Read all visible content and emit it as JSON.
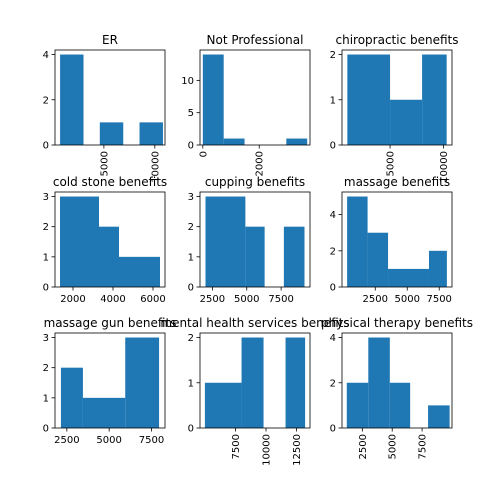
{
  "chart_data": [
    {
      "type": "bar",
      "title": "ER",
      "xlim": [
        200,
        11000
      ],
      "ylim": [
        0,
        4.2
      ],
      "bins": [
        [
          700,
          3000,
          4
        ],
        [
          4600,
          6900,
          1
        ],
        [
          8500,
          10800,
          1
        ]
      ],
      "xticks": [
        {
          "value": 5000,
          "label": "5000"
        },
        {
          "value": 10000,
          "label": "10000"
        }
      ],
      "yticks": [
        {
          "value": 0,
          "label": "0"
        },
        {
          "value": 2,
          "label": "2"
        },
        {
          "value": 4,
          "label": "4"
        }
      ],
      "xrotate": true
    },
    {
      "type": "bar",
      "title": "Not Professional",
      "xlim": [
        -100,
        3800
      ],
      "ylim": [
        0,
        14.7
      ],
      "bins": [
        [
          0,
          740,
          14
        ],
        [
          740,
          1480,
          1
        ],
        [
          2960,
          3700,
          1
        ]
      ],
      "xticks": [
        {
          "value": 0,
          "label": "0"
        },
        {
          "value": 2000,
          "label": "2000"
        }
      ],
      "yticks": [
        {
          "value": 0,
          "label": "0"
        },
        {
          "value": 5,
          "label": "5"
        },
        {
          "value": 10,
          "label": "10"
        }
      ],
      "xrotate": true
    },
    {
      "type": "bar",
      "title": "chiropractic benefits",
      "xlim": [
        500,
        10800
      ],
      "ylim": [
        0,
        2.1
      ],
      "bins": [
        [
          1000,
          5000,
          2
        ],
        [
          5000,
          8000,
          1
        ],
        [
          8000,
          10300,
          2
        ]
      ],
      "xticks": [
        {
          "value": 5000,
          "label": "5000"
        },
        {
          "value": 10000,
          "label": "10000"
        }
      ],
      "yticks": [
        {
          "value": 0,
          "label": "0"
        },
        {
          "value": 1,
          "label": "1"
        },
        {
          "value": 2,
          "label": "2"
        }
      ],
      "xrotate": true
    },
    {
      "type": "bar",
      "title": "cold stone benefits",
      "xlim": [
        1100,
        6600
      ],
      "ylim": [
        0,
        3.15
      ],
      "bins": [
        [
          1350,
          3300,
          3
        ],
        [
          3300,
          4300,
          2
        ],
        [
          4300,
          6350,
          1
        ]
      ],
      "xticks": [
        {
          "value": 2000,
          "label": "2000"
        },
        {
          "value": 4000,
          "label": "4000"
        },
        {
          "value": 6000,
          "label": "6000"
        }
      ],
      "yticks": [
        {
          "value": 0,
          "label": "0"
        },
        {
          "value": 1,
          "label": "1"
        },
        {
          "value": 2,
          "label": "2"
        },
        {
          "value": 3,
          "label": "3"
        }
      ],
      "xrotate": false
    },
    {
      "type": "bar",
      "title": "cupping benefits",
      "xlim": [
        1600,
        9600
      ],
      "ylim": [
        0,
        3.15
      ],
      "bins": [
        [
          2000,
          4900,
          3
        ],
        [
          4900,
          6300,
          2
        ],
        [
          7700,
          9200,
          2
        ]
      ],
      "xticks": [
        {
          "value": 2500,
          "label": "2500"
        },
        {
          "value": 5000,
          "label": "5000"
        },
        {
          "value": 7500,
          "label": "7500"
        }
      ],
      "yticks": [
        {
          "value": 0,
          "label": "0"
        },
        {
          "value": 1,
          "label": "1"
        },
        {
          "value": 2,
          "label": "2"
        },
        {
          "value": 3,
          "label": "3"
        }
      ],
      "xrotate": false
    },
    {
      "type": "bar",
      "title": "massage benefits",
      "xlim": [
        -100,
        8500
      ],
      "ylim": [
        0,
        5.25
      ],
      "bins": [
        [
          300,
          1900,
          5
        ],
        [
          1900,
          3500,
          3
        ],
        [
          3500,
          6700,
          1
        ],
        [
          6700,
          8100,
          2
        ]
      ],
      "xticks": [
        {
          "value": 2500,
          "label": "2500"
        },
        {
          "value": 5000,
          "label": "5000"
        },
        {
          "value": 7500,
          "label": "7500"
        }
      ],
      "yticks": [
        {
          "value": 0,
          "label": "0"
        },
        {
          "value": 2,
          "label": "2"
        },
        {
          "value": 4,
          "label": "4"
        }
      ],
      "xrotate": false
    },
    {
      "type": "bar",
      "title": "massage gun benefits",
      "xlim": [
        1800,
        8300
      ],
      "ylim": [
        0,
        3.15
      ],
      "bins": [
        [
          2150,
          3450,
          2
        ],
        [
          3450,
          5950,
          1
        ],
        [
          5950,
          7950,
          3
        ]
      ],
      "xticks": [
        {
          "value": 2500,
          "label": "2500"
        },
        {
          "value": 5000,
          "label": "5000"
        },
        {
          "value": 7500,
          "label": "7500"
        }
      ],
      "yticks": [
        {
          "value": 0,
          "label": "0"
        },
        {
          "value": 1,
          "label": "1"
        },
        {
          "value": 2,
          "label": "2"
        },
        {
          "value": 3,
          "label": "3"
        }
      ],
      "xrotate": false
    },
    {
      "type": "bar",
      "title": "mental health services benefits",
      "xlim": [
        4600,
        13600
      ],
      "ylim": [
        0,
        2.1
      ],
      "bins": [
        [
          5000,
          8000,
          1
        ],
        [
          8000,
          9800,
          2
        ],
        [
          11600,
          13200,
          2
        ]
      ],
      "xticks": [
        {
          "value": 7500,
          "label": "7500"
        },
        {
          "value": 10000,
          "label": "10000"
        },
        {
          "value": 12500,
          "label": "12500"
        }
      ],
      "yticks": [
        {
          "value": 0,
          "label": "0"
        },
        {
          "value": 1,
          "label": "1"
        },
        {
          "value": 2,
          "label": "2"
        }
      ],
      "xrotate": true
    },
    {
      "type": "bar",
      "title": "physical therapy benefits",
      "xlim": [
        800,
        10000
      ],
      "ylim": [
        0,
        4.2
      ],
      "bins": [
        [
          1200,
          3000,
          2
        ],
        [
          3000,
          4800,
          4
        ],
        [
          4800,
          6500,
          2
        ],
        [
          8000,
          9800,
          1
        ]
      ],
      "xticks": [
        {
          "value": 2500,
          "label": "2500"
        },
        {
          "value": 5000,
          "label": "5000"
        },
        {
          "value": 7500,
          "label": "7500"
        }
      ],
      "yticks": [
        {
          "value": 0,
          "label": "0"
        },
        {
          "value": 2,
          "label": "2"
        },
        {
          "value": 4,
          "label": "4"
        }
      ],
      "xrotate": true
    }
  ],
  "style": {
    "bar_color": "#1f77b4",
    "axis_color": "#000000"
  }
}
